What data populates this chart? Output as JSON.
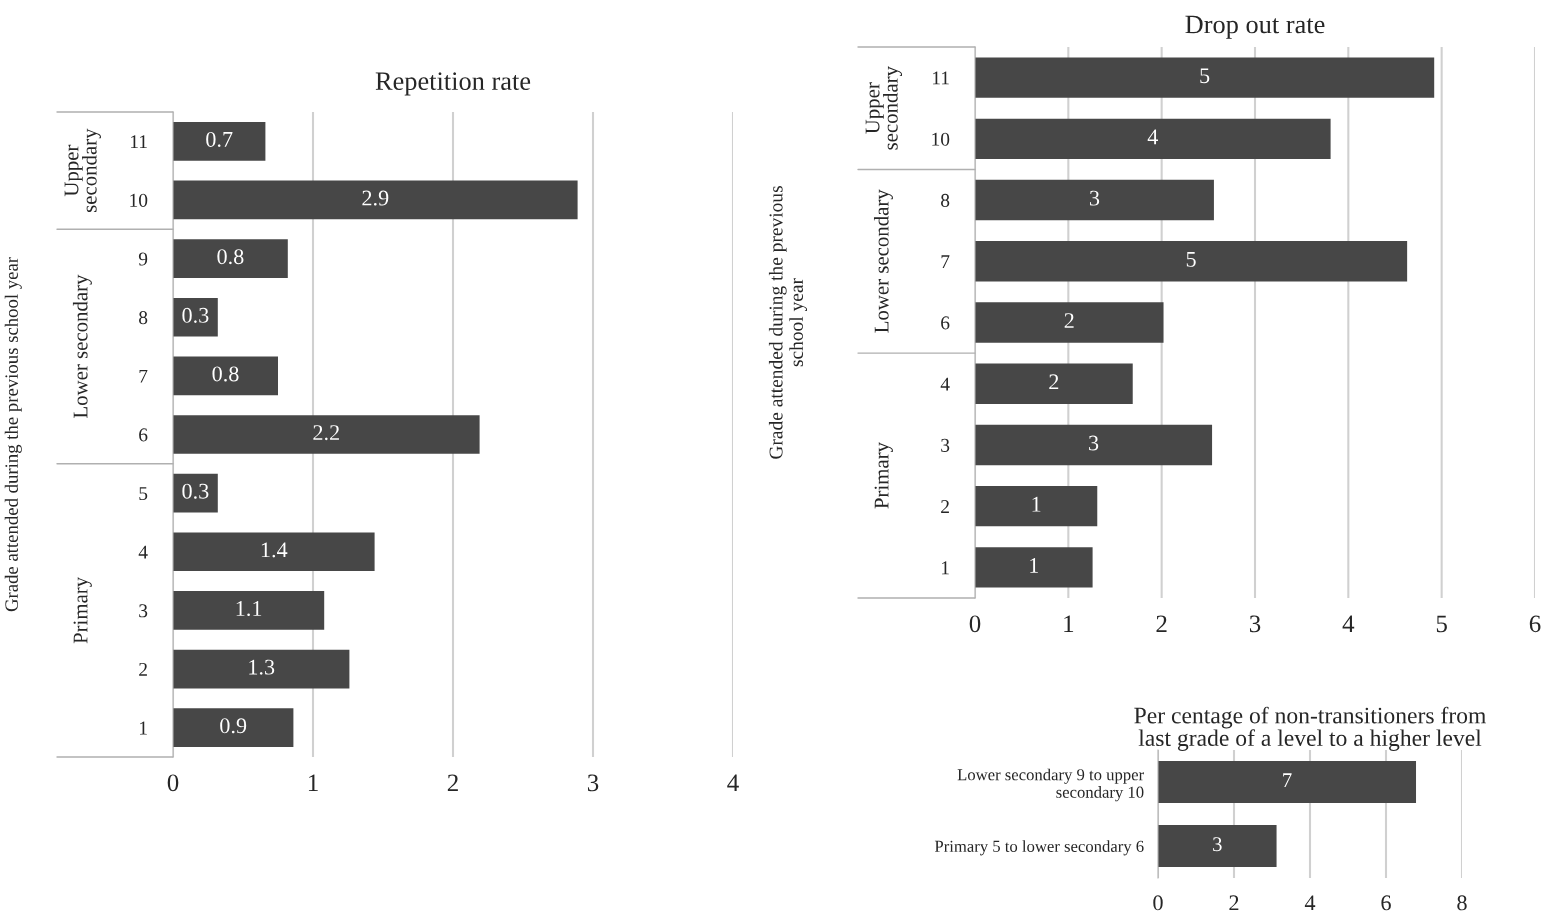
{
  "chart_data": [
    {
      "type": "bar",
      "orientation": "horizontal",
      "title": "Repetition rate",
      "ylabel": "Grade attended during the previous school year",
      "categories": [
        "11",
        "10",
        "9",
        "8",
        "7",
        "6",
        "5",
        "4",
        "3",
        "2",
        "1"
      ],
      "values": [
        0.66,
        2.89,
        0.82,
        0.32,
        0.75,
        2.19,
        0.32,
        1.44,
        1.08,
        1.26,
        0.86
      ],
      "value_labels": [
        "0.7",
        "2.9",
        "0.8",
        "0.3",
        "0.8",
        "2.2",
        "0.3",
        "1.4",
        "1.1",
        "1.3",
        "0.9"
      ],
      "color": "#474747",
      "xlim": [
        0,
        4
      ],
      "xticks": [
        0,
        1,
        2,
        3,
        4
      ],
      "grid": "x",
      "annotations": [
        "Upper\nsecondary",
        "Lower secondary",
        "Primary"
      ]
    },
    {
      "type": "bar",
      "orientation": "horizontal",
      "title": "Drop out rate",
      "ylabel": "Grade attended during the previous\nschool year",
      "categories": [
        "11",
        "10",
        "8",
        "7",
        "6",
        "4",
        "3",
        "2",
        "1"
      ],
      "values": [
        4.92,
        3.81,
        2.56,
        4.63,
        2.02,
        1.69,
        2.54,
        1.31,
        1.26
      ],
      "value_labels": [
        "5",
        "4",
        "3",
        "5",
        "2",
        "2",
        "3",
        "1",
        "1"
      ],
      "color": "#474747",
      "xlim": [
        0,
        6
      ],
      "xticks": [
        0,
        1,
        2,
        3,
        4,
        5,
        6
      ],
      "grid": "x",
      "annotations": [
        "Upper\nsecondary",
        "Lower secondary",
        "Primary"
      ]
    },
    {
      "type": "bar",
      "orientation": "horizontal",
      "title": "Per centage of non-transitioners from\nlast grade of a level to a higher level",
      "categories": [
        "Lower secondary 9 to upper\nsecondary 10",
        "Primary 5 to lower secondary 6"
      ],
      "values": [
        6.79,
        3.12
      ],
      "value_labels": [
        "7",
        "3"
      ],
      "color": "#474747",
      "xlim": [
        0,
        8
      ],
      "xticks": [
        0,
        2,
        4,
        6,
        8
      ],
      "grid": "x"
    }
  ]
}
